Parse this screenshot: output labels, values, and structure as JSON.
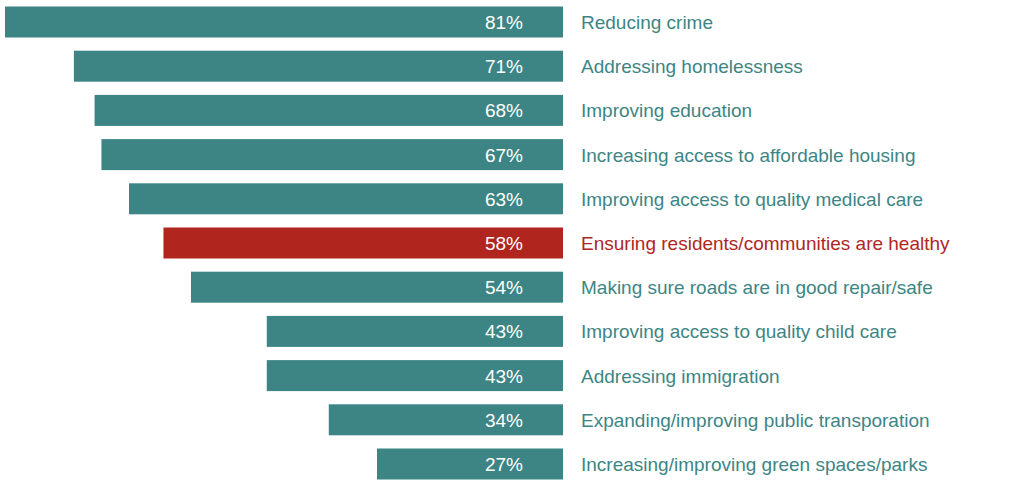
{
  "chart_data": {
    "type": "bar",
    "orientation": "horizontal",
    "categories": [
      "Reducing crime",
      "Addressing homelessness",
      "Improving education",
      "Increasing access to affordable housing",
      "Improving access to quality medical care",
      "Ensuring residents/communities are healthy",
      "Making sure roads are in good repair/safe",
      "Improving access to quality child care",
      "Addressing immigration",
      "Expanding/improving public transporation",
      "Increasing/improving green spaces/parks"
    ],
    "values": [
      81,
      71,
      68,
      67,
      63,
      58,
      54,
      43,
      43,
      34,
      27
    ],
    "value_labels": [
      "81%",
      "71%",
      "68%",
      "67%",
      "63%",
      "58%",
      "54%",
      "43%",
      "43%",
      "34%",
      "27%"
    ],
    "colors": [
      "#3d8585",
      "#3d8585",
      "#3d8585",
      "#3d8585",
      "#3d8585",
      "#b0261f",
      "#3d8585",
      "#3d8585",
      "#3d8585",
      "#3d8585",
      "#3d8585"
    ],
    "xlim": [
      0,
      81
    ],
    "data_labels": true,
    "tick_labels": false,
    "grid": false
  }
}
